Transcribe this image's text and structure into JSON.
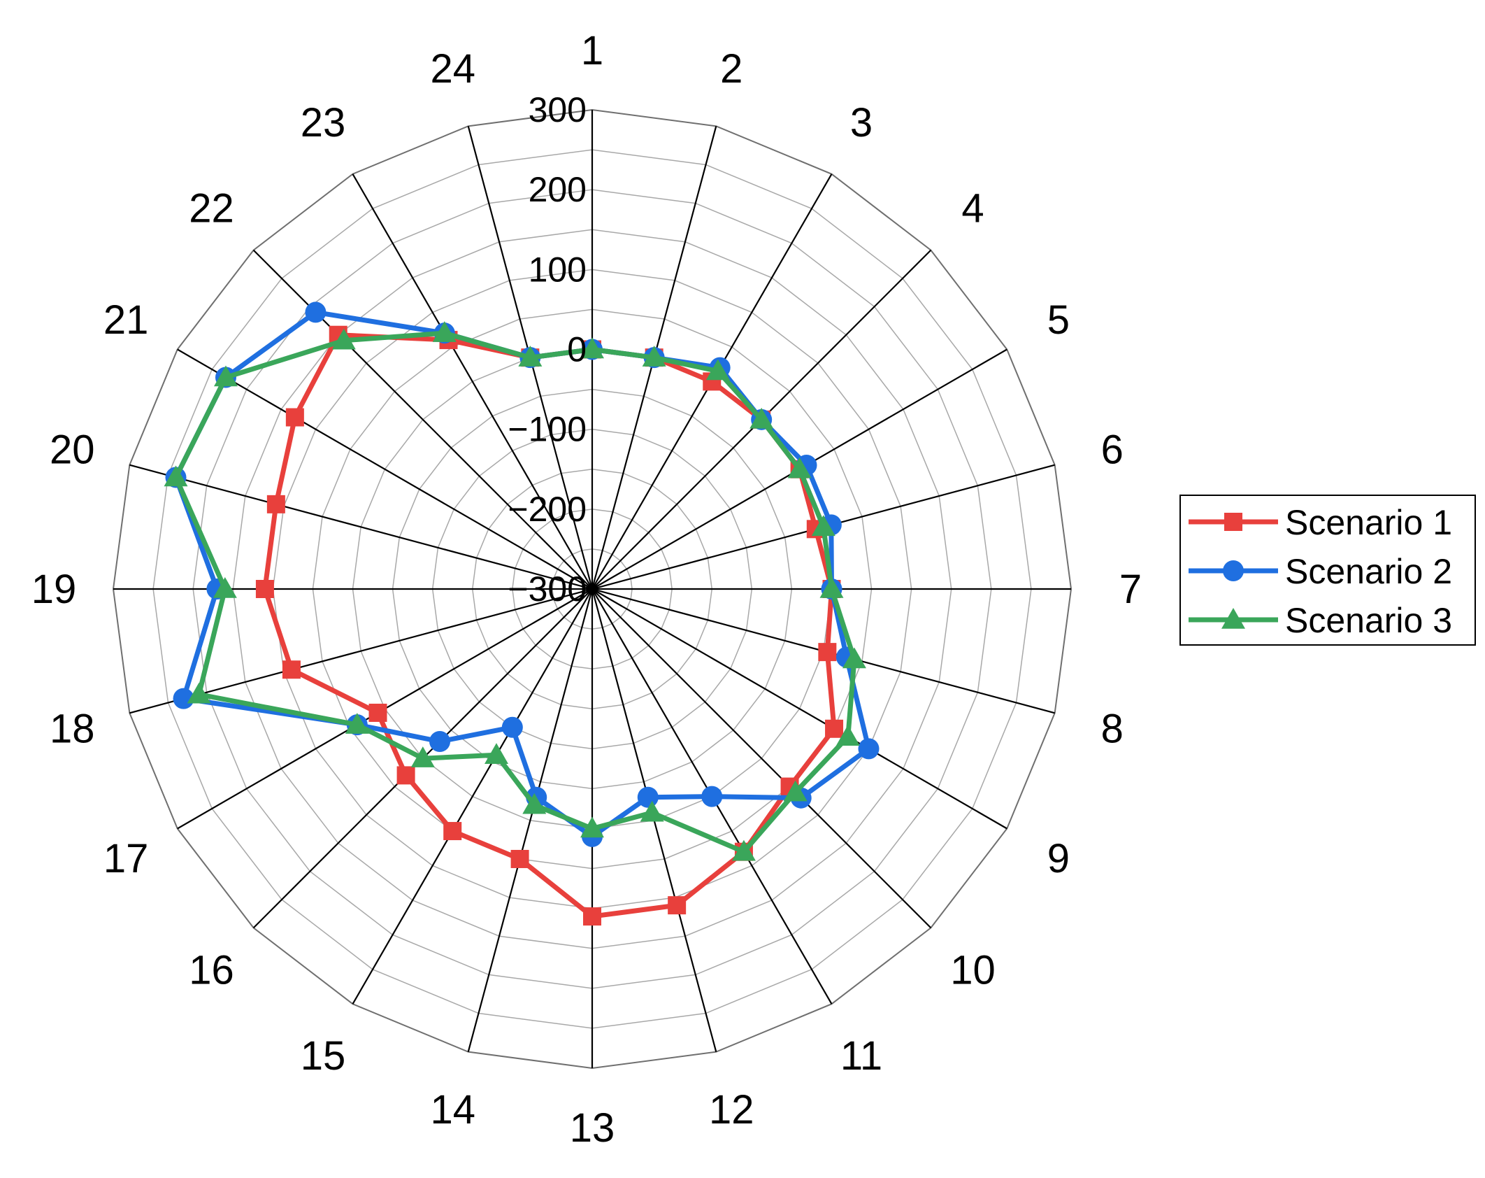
{
  "chart_data": {
    "type": "radar",
    "title": "",
    "categories": [
      "1",
      "2",
      "3",
      "4",
      "5",
      "6",
      "7",
      "8",
      "9",
      "10",
      "11",
      "12",
      "13",
      "14",
      "15",
      "16",
      "17",
      "18",
      "19",
      "20",
      "21",
      "22",
      "23",
      "24"
    ],
    "radial_axis": {
      "min": -300,
      "max": 300,
      "step": 100,
      "tick_labels": [
        "−300",
        "−200",
        "−100",
        "0",
        "100",
        "200",
        "300"
      ]
    },
    "grid": true,
    "legend_position": "right",
    "series": [
      {
        "name": "Scenario 1",
        "color": "#e8403c",
        "marker": "square",
        "values": [
          0,
          0,
          0,
          0,
          0,
          -10,
          0,
          5,
          50,
          50,
          80,
          110,
          110,
          50,
          50,
          30,
          10,
          90,
          110,
          110,
          130,
          150,
          60,
          0
        ]
      },
      {
        "name": "Scenario 2",
        "color": "#1f6fe0",
        "marker": "circle",
        "values": [
          0,
          0,
          20,
          0,
          10,
          10,
          0,
          30,
          100,
          70,
          0,
          -30,
          10,
          -30,
          -100,
          -30,
          40,
          230,
          170,
          240,
          230,
          190,
          70,
          0
        ]
      },
      {
        "name": "Scenario 3",
        "color": "#3aa65a",
        "marker": "triangle",
        "values": [
          0,
          0,
          15,
          0,
          0,
          0,
          0,
          40,
          70,
          60,
          80,
          -10,
          0,
          -20,
          -60,
          0,
          40,
          210,
          160,
          240,
          230,
          140,
          70,
          0
        ]
      }
    ]
  }
}
